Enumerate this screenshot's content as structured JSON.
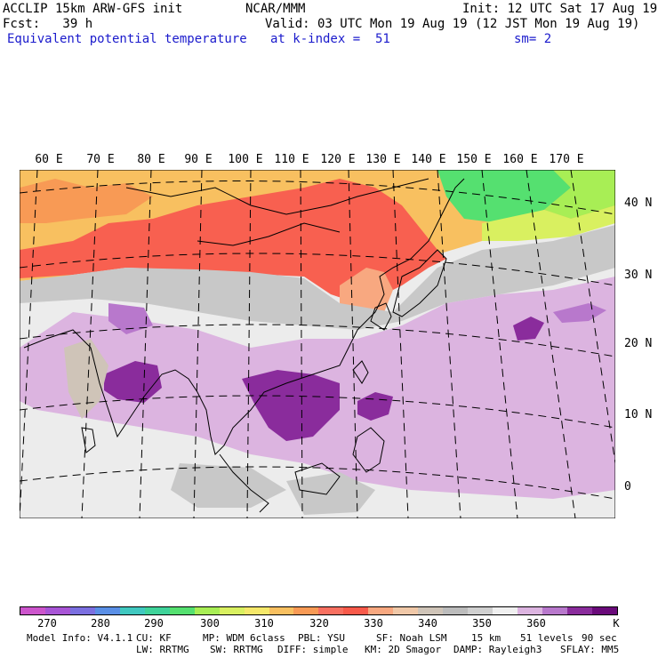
{
  "header": {
    "line1_left": "ACCLIP 15km ARW-GFS init",
    "line1_mid": "NCAR/MMM",
    "line1_right": "Init: 12 UTC Sat 17 Aug 19",
    "line2_left": "Fcst:   39 h",
    "line2_right": "Valid: 03 UTC Mon 19 Aug 19 (12 JST Mon 19 Aug 19)",
    "line3_left": "Equivalent potential temperature",
    "line3_mid": "at k-index =  51",
    "line3_right": "sm= 2"
  },
  "map": {
    "longitude_labels": [
      "60 E",
      "70 E",
      "80 E",
      "90 E",
      "100 E",
      "110 E",
      "120 E",
      "130 E",
      "140 E",
      "150 E",
      "160 E",
      "170 E"
    ],
    "latitude_labels": [
      "40 N",
      "30 N",
      "20 N",
      "10 N",
      "0"
    ],
    "variable": "Equivalent potential temperature",
    "units": "K"
  },
  "colorbar": {
    "colors": [
      "#cc55cc",
      "#a855d6",
      "#7b6fe0",
      "#5a8fe6",
      "#40c8c0",
      "#3fd39a",
      "#55e070",
      "#a8ee55",
      "#d9f060",
      "#f5e86a",
      "#f8c060",
      "#f89a55",
      "#f87060",
      "#f85a4a",
      "#f8a880",
      "#f0c8a8",
      "#cfc4b8",
      "#bcbcbc",
      "#d0d0d0",
      "#f0f0f0",
      "#dcb4e0",
      "#b878cc",
      "#8a2c9c",
      "#6a0a7a"
    ],
    "tick_labels": [
      "270",
      "280",
      "290",
      "300",
      "310",
      "320",
      "330",
      "340",
      "350",
      "360"
    ],
    "unit_label": "K"
  },
  "footer": {
    "line1": [
      "Model Info: V4.1.1",
      "CU: KF",
      "MP: WDM 6class",
      "PBL: YSU",
      "SF: Noah LSM",
      "15 km",
      "51 levels",
      "90 sec"
    ],
    "line2": [
      "LW: RRTMG",
      "SW: RRTMG",
      "DIFF: simple",
      "KM: 2D Smagor",
      "DAMP: Rayleigh3",
      "SFLAY: MM5"
    ]
  }
}
